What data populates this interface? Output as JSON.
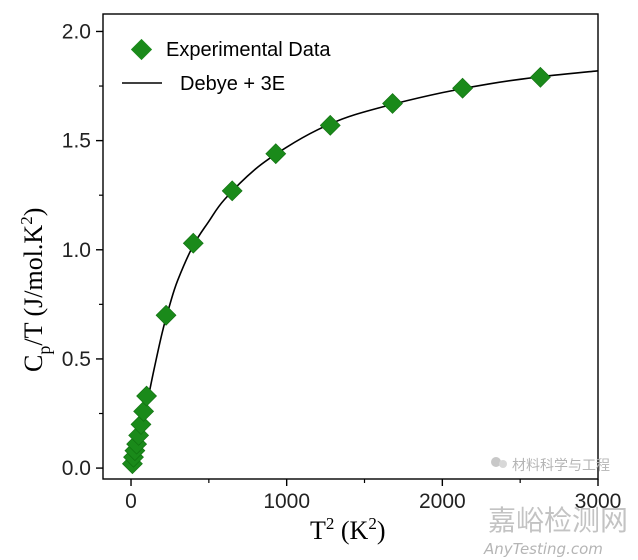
{
  "chart_data": {
    "type": "scatter",
    "title": "",
    "xlabel": "T",
    "xlabel_sup": "2",
    "xlabel_unit_open": " (K",
    "xlabel_unit_sup": "2",
    "xlabel_unit_close": ")",
    "ylabel": "C",
    "ylabel_sub": "p",
    "ylabel_mid": "/T (J/mol.K",
    "ylabel_sup": "2",
    "ylabel_end": ")",
    "xlim": [
      -180,
      3000
    ],
    "ylim": [
      -0.05,
      2.08
    ],
    "x_ticks": [
      0,
      1000,
      2000,
      3000
    ],
    "x_tick_labels": [
      "0",
      "1000",
      "2000",
      "3000"
    ],
    "y_ticks": [
      0.0,
      0.5,
      1.0,
      1.5,
      2.0
    ],
    "y_tick_labels": [
      "0.0",
      "0.5",
      "1.0",
      "1.5",
      "2.0"
    ],
    "grid": false,
    "legend_position": "top-left",
    "series": [
      {
        "name": "Experimental Data",
        "kind": "scatter",
        "marker": "diamond",
        "color": "#1a8a1a",
        "points": [
          [
            9,
            0.02
          ],
          [
            16,
            0.05
          ],
          [
            25,
            0.08
          ],
          [
            36,
            0.11
          ],
          [
            49,
            0.15
          ],
          [
            64,
            0.2
          ],
          [
            81,
            0.26
          ],
          [
            100,
            0.33
          ],
          [
            225,
            0.7
          ],
          [
            400,
            1.03
          ],
          [
            650,
            1.27
          ],
          [
            930,
            1.44
          ],
          [
            1280,
            1.57
          ],
          [
            1680,
            1.67
          ],
          [
            2130,
            1.74
          ],
          [
            2630,
            1.79
          ]
        ]
      },
      {
        "name": "Debye + 3E",
        "kind": "line",
        "color": "#000000",
        "points": [
          [
            25,
            0.06
          ],
          [
            50,
            0.14
          ],
          [
            100,
            0.29
          ],
          [
            150,
            0.46
          ],
          [
            200,
            0.62
          ],
          [
            250,
            0.75
          ],
          [
            300,
            0.86
          ],
          [
            400,
            1.02
          ],
          [
            500,
            1.13
          ],
          [
            600,
            1.23
          ],
          [
            800,
            1.37
          ],
          [
            1000,
            1.47
          ],
          [
            1200,
            1.55
          ],
          [
            1400,
            1.61
          ],
          [
            1700,
            1.67
          ],
          [
            2000,
            1.72
          ],
          [
            2300,
            1.76
          ],
          [
            2600,
            1.79
          ],
          [
            3000,
            1.82
          ]
        ]
      }
    ]
  },
  "watermark": {
    "wechat": "材料科学与工程",
    "brand": "嘉峪检测网",
    "url": "AnyTesting.com"
  }
}
